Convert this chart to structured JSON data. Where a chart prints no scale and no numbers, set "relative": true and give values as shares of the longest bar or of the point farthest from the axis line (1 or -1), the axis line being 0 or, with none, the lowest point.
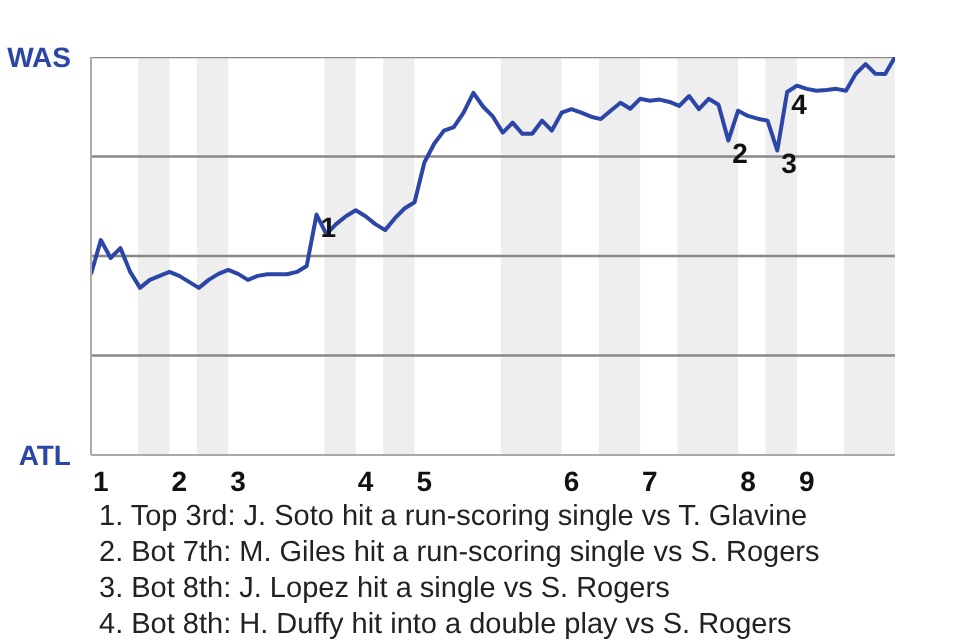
{
  "chart_data": {
    "type": "line",
    "relative": true,
    "categories": [
      null,
      "1",
      null,
      null,
      null,
      null,
      null,
      null,
      null,
      "2",
      null,
      null,
      null,
      null,
      null,
      "3",
      null,
      null,
      null,
      null,
      null,
      null,
      null,
      null,
      null,
      null,
      null,
      null,
      "4",
      null,
      null,
      null,
      null,
      null,
      "5",
      null,
      null,
      null,
      null,
      null,
      null,
      null,
      null,
      null,
      null,
      null,
      null,
      null,
      null,
      "6",
      null,
      null,
      null,
      null,
      null,
      null,
      null,
      "7",
      null,
      null,
      null,
      null,
      null,
      null,
      null,
      null,
      null,
      "8",
      null,
      null,
      null,
      null,
      null,
      "9",
      null,
      null,
      null,
      null,
      null,
      null,
      null,
      null,
      null
    ],
    "series": [
      {
        "color": "#2b46a6",
        "values": [
          0.454,
          0.54,
          0.495,
          0.52,
          0.46,
          0.42,
          0.44,
          0.45,
          0.46,
          0.45,
          0.435,
          0.42,
          0.44,
          0.455,
          0.465,
          0.455,
          0.44,
          0.45,
          0.454,
          0.454,
          0.454,
          0.46,
          0.475,
          0.604,
          0.555,
          0.58,
          0.6,
          0.615,
          0.6,
          0.58,
          0.565,
          0.595,
          0.62,
          0.635,
          0.735,
          0.782,
          0.815,
          0.824,
          0.86,
          0.91,
          0.875,
          0.85,
          0.81,
          0.835,
          0.807,
          0.807,
          0.84,
          0.815,
          0.86,
          0.869,
          0.86,
          0.85,
          0.844,
          0.865,
          0.885,
          0.87,
          0.895,
          0.89,
          0.893,
          0.887,
          0.877,
          0.902,
          0.869,
          0.895,
          0.88,
          0.79,
          0.865,
          0.852,
          0.845,
          0.84,
          0.765,
          0.912,
          0.928,
          0.92,
          0.915,
          0.917,
          0.92,
          0.915,
          0.958,
          0.982,
          0.958,
          0.957,
          1.0
        ]
      }
    ],
    "marker": "none",
    "line_style": "solid",
    "ref_lines": [
      {
        "axis": "y",
        "value": 0.25,
        "color": "#888888"
      },
      {
        "axis": "y",
        "value": 0.5,
        "color": "#888888"
      },
      {
        "axis": "y",
        "value": 0.75,
        "color": "#888888"
      },
      {
        "axis": "y",
        "value": 1,
        "color": "#888888"
      }
    ],
    "annotations": [
      "WAS",
      "ATL",
      {
        "text": "1",
        "y": 0.604
      },
      {
        "text": "2",
        "y": 0.79
      },
      {
        "text": "3",
        "y": 0.765
      },
      {
        "text": "4",
        "y": 0.912
      },
      "1. Top 3rd: J. Soto hit a run-scoring single vs T. Glavine",
      "2. Bot 7th: M. Giles hit a run-scoring single vs S. Rogers",
      "3. Bot 8th: J. Lopez hit a single vs S. Rogers",
      "4. Bot 8th: H. Duffy hit into a double play vs S. Rogers"
    ]
  }
}
